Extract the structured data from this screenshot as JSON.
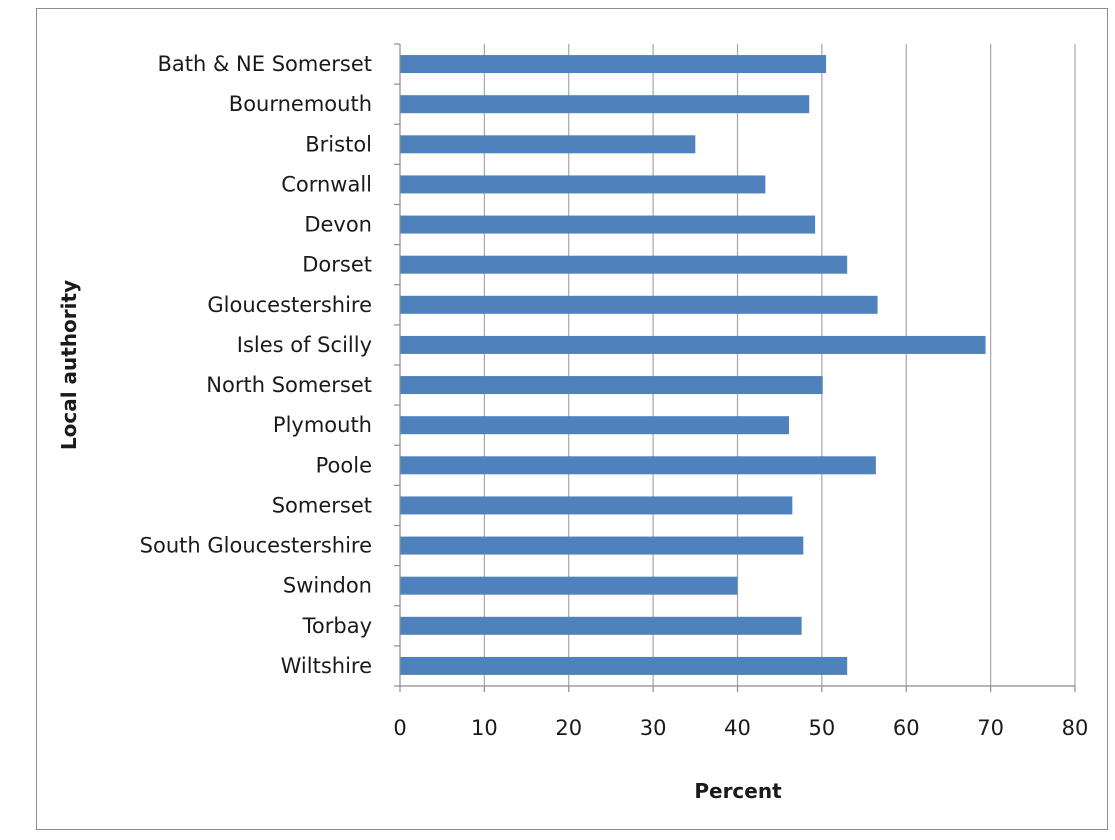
{
  "chart_data": {
    "type": "bar",
    "orientation": "horizontal",
    "categories": [
      "Bath & NE Somerset",
      "Bournemouth",
      "Bristol",
      "Cornwall",
      "Devon",
      "Dorset",
      "Gloucestershire",
      "Isles of Scilly",
      "North Somerset",
      "Plymouth",
      "Poole",
      "Somerset",
      "South Gloucestershire",
      "Swindon",
      "Torbay",
      "Wiltshire"
    ],
    "values": [
      50.5,
      48.5,
      35,
      43.3,
      49.2,
      53,
      56.6,
      69.4,
      50.1,
      46.1,
      56.4,
      46.5,
      47.8,
      40,
      47.6,
      53
    ],
    "xlabel": "Percent",
    "ylabel": "Local authority",
    "xlim": [
      0,
      80
    ],
    "xticks": [
      0,
      10,
      20,
      30,
      40,
      50,
      60,
      70,
      80
    ],
    "grid": "vertical",
    "legend": "none",
    "colors": {
      "bar": "#4f81bd",
      "grid": "#a6a6a6",
      "axis": "#8c8c8c"
    }
  }
}
